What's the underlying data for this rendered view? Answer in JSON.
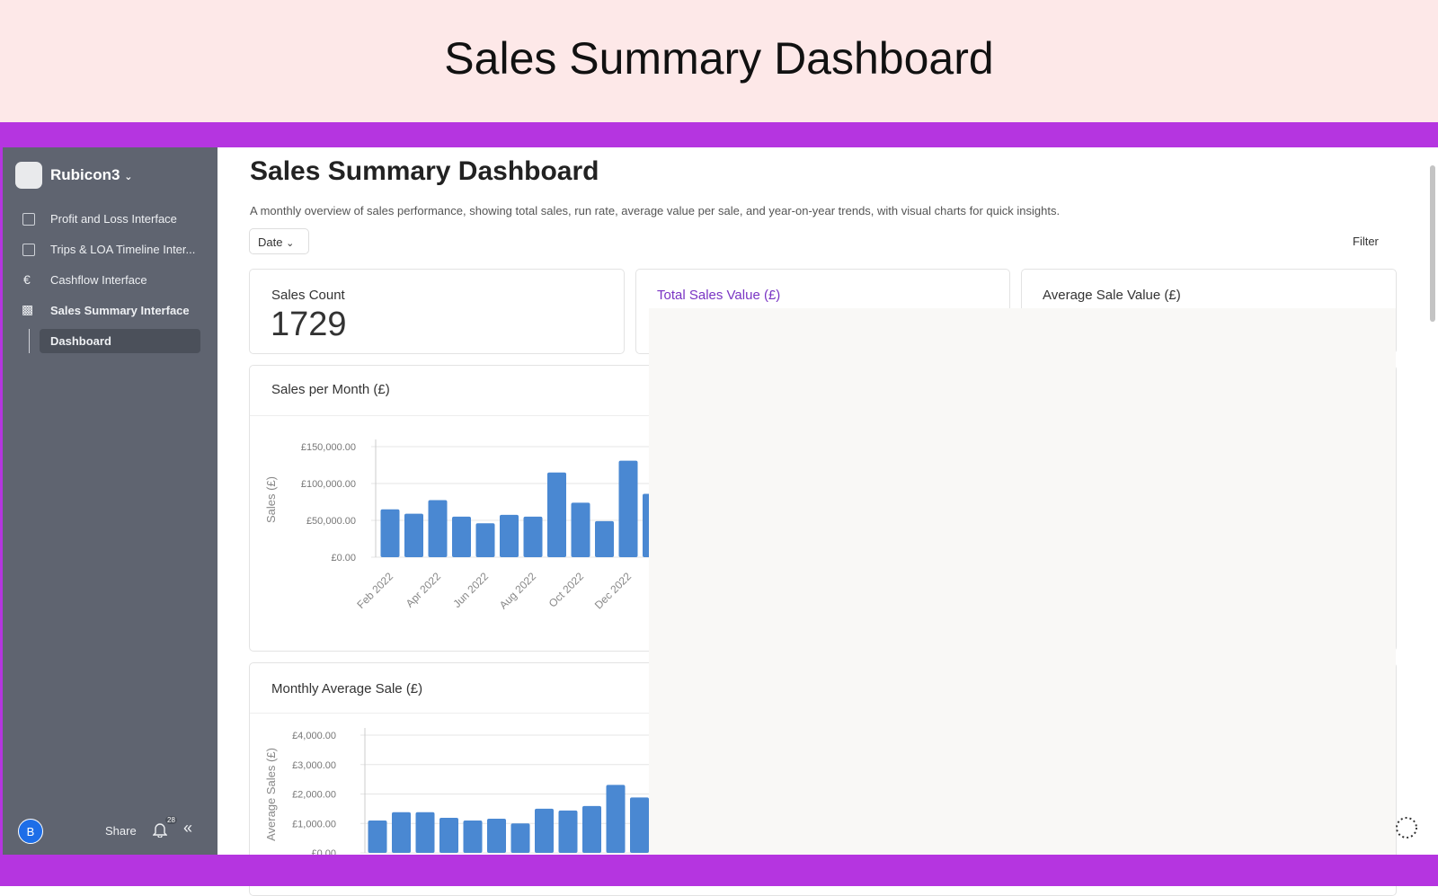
{
  "banner": {
    "title": "Sales Summary Dashboard"
  },
  "sidebar": {
    "workspace": "Rubicon3",
    "nav": [
      "Profit and Loss Interface",
      "Trips & LOA Timeline Inter...",
      "Cashflow Interface",
      "Sales Summary Interface",
      "Dashboard"
    ],
    "user_initial": "B",
    "share": "Share",
    "notifications": "28"
  },
  "header": {
    "title": "Sales Summary Dashboard",
    "description": "A monthly overview of sales performance, showing total sales, run rate, average value per sale, and year-on-year trends, with visual charts for quick insights.",
    "date_filter": "Date",
    "filter": "Filter"
  },
  "kpis": [
    {
      "label": "Sales Count",
      "value": 1729
    },
    {
      "label": "Total Sales Value (£)"
    },
    {
      "label": "Average Sale Value (£)"
    }
  ],
  "chart_data": [
    {
      "type": "bar",
      "title": "Sales per Month (£)",
      "y_label": "Sales (£)",
      "color": "#4a88d2",
      "categories": [
        "Feb 2022",
        null,
        "Apr 2022",
        null,
        "Jun 2022",
        null,
        "Aug 2022",
        null,
        "Oct 2022",
        null,
        "Dec 2022",
        null
      ],
      "values": [
        65000,
        59000,
        77500,
        55000,
        46000,
        57500,
        55000,
        115000,
        74000,
        49000,
        131000,
        86000
      ],
      "ylim": [
        0,
        150000
      ],
      "yticks": [
        {
          "value": 0,
          "label": "£0.00"
        },
        {
          "value": 50000,
          "label": "£50,000.00"
        },
        {
          "value": 100000,
          "label": "£100,000.00"
        },
        {
          "value": 150000,
          "label": "£150,000.00"
        }
      ],
      "grid": true
    },
    {
      "type": "bar",
      "title": "Monthly Average Sale (£)",
      "y_label": "Average Sales (£)",
      "color": "#4a88d2",
      "categories": [
        null,
        null,
        null,
        null,
        null,
        null,
        null,
        null,
        null,
        null,
        null,
        null
      ],
      "values": [
        1100,
        1380,
        1380,
        1190,
        1100,
        1160,
        1000,
        1500,
        1440,
        1590,
        2310,
        1880
      ],
      "ylim": [
        0,
        4000
      ],
      "yticks": [
        {
          "value": 0,
          "label": "£0.00"
        },
        {
          "value": 1000,
          "label": "£1,000.00"
        },
        {
          "value": 2000,
          "label": "£2,000.00"
        },
        {
          "value": 3000,
          "label": "£3,000.00"
        },
        {
          "value": 4000,
          "label": "£4,000.00"
        }
      ],
      "grid": true
    }
  ]
}
